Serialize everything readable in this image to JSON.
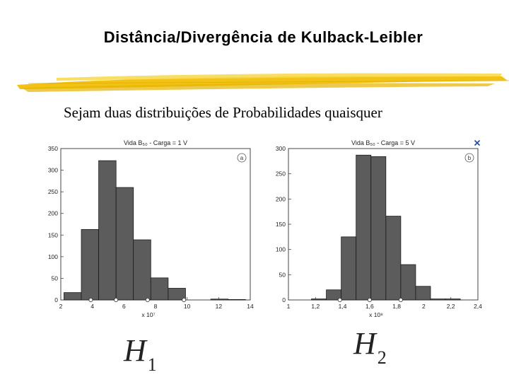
{
  "slide": {
    "title": "Distância/Divergência de Kulback-Leibler",
    "subtitle": "Sejam duas distribuições de Probabilidades quaisquer",
    "h1_base": "H",
    "h1_sub": "1",
    "h2_base": "H",
    "h2_sub": "2"
  },
  "chart_data": [
    {
      "type": "bar",
      "title": "Vida B₅₀ - Carga = 1 V",
      "badge": "a",
      "xlabel": "x 10⁷",
      "xlim": [
        2,
        14
      ],
      "ylim": [
        0,
        350
      ],
      "xticks": [
        "2",
        "4",
        "6",
        "8",
        "10",
        "12",
        "14"
      ],
      "yticks": [
        "0",
        "50",
        "100",
        "150",
        "200",
        "250",
        "300",
        "350"
      ],
      "bins": [
        {
          "x0": 2.2,
          "x1": 3.3,
          "value": 17
        },
        {
          "x0": 3.3,
          "x1": 4.4,
          "value": 163
        },
        {
          "x0": 4.4,
          "x1": 5.5,
          "value": 322
        },
        {
          "x0": 5.5,
          "x1": 6.6,
          "value": 260
        },
        {
          "x0": 6.6,
          "x1": 7.7,
          "value": 139
        },
        {
          "x0": 7.7,
          "x1": 8.8,
          "value": 51
        },
        {
          "x0": 8.8,
          "x1": 9.9,
          "value": 27
        },
        {
          "x0": 11.5,
          "x1": 12.6,
          "value": 2
        },
        {
          "x0": 12.6,
          "x1": 13.7,
          "value": 1
        }
      ],
      "markers": [
        3.9,
        5.5,
        7.5,
        9.8
      ]
    },
    {
      "type": "bar",
      "title": "Vida B₅₀ - Carga = 5 V",
      "badge": "b",
      "xlabel": "x 10⁸",
      "xlim": [
        1,
        2.4
      ],
      "ylim": [
        0,
        300
      ],
      "xticks": [
        "1",
        "1,2",
        "1,4",
        "1,6",
        "1,8",
        "2",
        "2,2",
        "2,4"
      ],
      "yticks": [
        "0",
        "50",
        "100",
        "150",
        "200",
        "250",
        "300"
      ],
      "bins": [
        {
          "x0": 1.17,
          "x1": 1.28,
          "value": 2
        },
        {
          "x0": 1.28,
          "x1": 1.39,
          "value": 20
        },
        {
          "x0": 1.39,
          "x1": 1.5,
          "value": 125
        },
        {
          "x0": 1.5,
          "x1": 1.61,
          "value": 287
        },
        {
          "x0": 1.61,
          "x1": 1.72,
          "value": 284
        },
        {
          "x0": 1.72,
          "x1": 1.83,
          "value": 166
        },
        {
          "x0": 1.83,
          "x1": 1.94,
          "value": 70
        },
        {
          "x0": 1.94,
          "x1": 2.05,
          "value": 27
        },
        {
          "x0": 2.05,
          "x1": 2.16,
          "value": 2
        },
        {
          "x0": 2.16,
          "x1": 2.27,
          "value": 2
        }
      ],
      "markers": [
        1.38,
        1.6,
        1.83
      ]
    }
  ]
}
